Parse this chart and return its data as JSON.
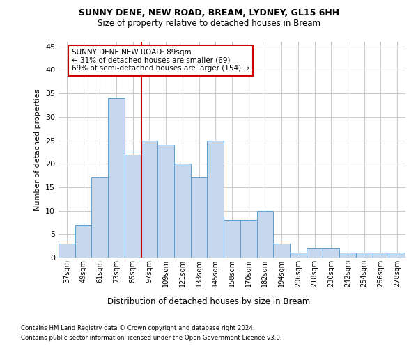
{
  "title1": "SUNNY DENE, NEW ROAD, BREAM, LYDNEY, GL15 6HH",
  "title2": "Size of property relative to detached houses in Bream",
  "xlabel": "Distribution of detached houses by size in Bream",
  "ylabel": "Number of detached properties",
  "categories": [
    "37sqm",
    "49sqm",
    "61sqm",
    "73sqm",
    "85sqm",
    "97sqm",
    "109sqm",
    "121sqm",
    "133sqm",
    "145sqm",
    "158sqm",
    "170sqm",
    "182sqm",
    "194sqm",
    "206sqm",
    "218sqm",
    "230sqm",
    "242sqm",
    "254sqm",
    "266sqm",
    "278sqm"
  ],
  "values": [
    3,
    7,
    17,
    34,
    22,
    25,
    24,
    20,
    17,
    25,
    8,
    8,
    10,
    3,
    1,
    2,
    2,
    1,
    1,
    1,
    1
  ],
  "bar_color": "#c5d8ed",
  "bar_edge_color": "#5a9fd4",
  "vline_x": 4.5,
  "vline_color": "#cc0000",
  "annotation_title": "SUNNY DENE NEW ROAD: 89sqm",
  "annotation_line1": "← 31% of detached houses are smaller (69)",
  "annotation_line2": "69% of semi-detached houses are larger (154) →",
  "annotation_box_color": "#ffffff",
  "annotation_box_edge": "#cc0000",
  "ylim": [
    0,
    46
  ],
  "yticks": [
    0,
    5,
    10,
    15,
    20,
    25,
    30,
    35,
    40,
    45
  ],
  "footer1": "Contains HM Land Registry data © Crown copyright and database right 2024.",
  "footer2": "Contains public sector information licensed under the Open Government Licence v3.0.",
  "bg_color": "#ffffff",
  "grid_color": "#cccccc"
}
